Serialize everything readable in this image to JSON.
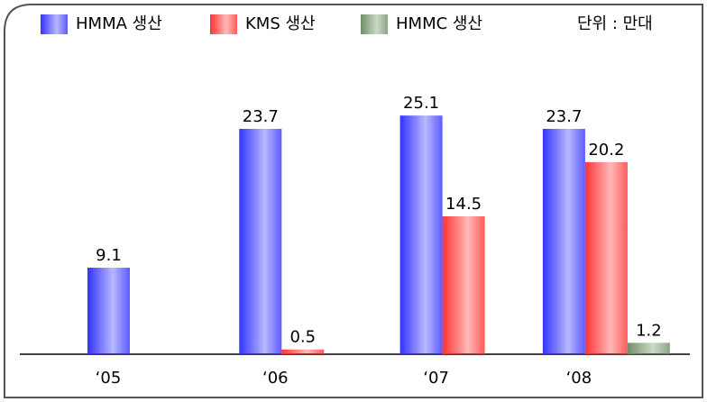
{
  "chart_data": {
    "type": "bar",
    "unit_note": "단위 : 만대",
    "categories": [
      "‘05",
      "‘06",
      "‘07",
      "‘08"
    ],
    "series": [
      {
        "name": "HMMA 생산",
        "color": "#3333ff",
        "values": [
          9.1,
          23.7,
          25.1,
          23.7
        ]
      },
      {
        "name": "KMS 생산",
        "color": "#ff3333",
        "values": [
          null,
          0.5,
          14.5,
          20.2
        ]
      },
      {
        "name": "HMMC 생산",
        "color": "#6f8f66",
        "values": [
          null,
          null,
          null,
          1.2
        ]
      }
    ],
    "ylim": [
      0,
      30
    ],
    "legend": "top"
  }
}
